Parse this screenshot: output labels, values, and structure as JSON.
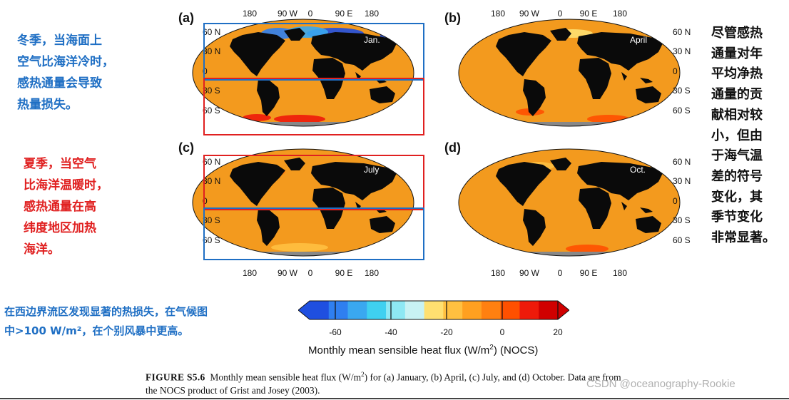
{
  "notes": {
    "winter": [
      "冬季，当海面上",
      "空气比海洋冷时，",
      "感热通量会导致",
      "热量损失。"
    ],
    "summer": [
      "夏季，当空气",
      "比海洋温暖时，",
      "感热通量在高",
      "纬度地区加热",
      "海洋。"
    ],
    "annual": [
      "尽管感热",
      "通量对年",
      "平均净热",
      "通量的贡",
      "献相对较",
      "小，但由",
      "于海气温",
      "差的符号",
      "变化，其",
      "季节变化",
      "非常显著。"
    ],
    "western_boundary": [
      "在西边界流区发现显著的热损失，在气候图",
      "中>100 W/m²，在个别风暴中更高。"
    ]
  },
  "panels": [
    {
      "label": "(a)",
      "month": "Jan."
    },
    {
      "label": "(b)",
      "month": "April"
    },
    {
      "label": "(c)",
      "month": "July"
    },
    {
      "label": "(d)",
      "month": "Oct."
    }
  ],
  "lon_ticks": [
    "180",
    "90 W",
    "0",
    "90 E",
    "180"
  ],
  "lat_ticks": [
    "60 N",
    "30 N",
    "0",
    "30 S",
    "60 S"
  ],
  "colorbar": {
    "ticks": [
      "-60",
      "-40",
      "-20",
      "0",
      "20"
    ],
    "title_prefix": "Monthly mean sensible heat flux (W/m",
    "title_sup": "2",
    "title_suffix": ") (NOCS)",
    "colors": [
      "#1f4fe0",
      "#2f7ff0",
      "#3aa8f0",
      "#3fd0f0",
      "#8ee8f4",
      "#c8f2f4",
      "#ffe070",
      "#ffc040",
      "#ffa020",
      "#ff8010",
      "#ff5000",
      "#ee1a0a",
      "#d00000"
    ]
  },
  "caption": {
    "figure_label": "FIGURE S5.6",
    "text_a": "Monthly mean sensible heat flux (W/m",
    "sup": "2",
    "text_b": ") for (a) January, (b) April, (c) July, and (d) October. Data are from",
    "line2": "the NOCS product of Grist and Josey (2003)."
  },
  "watermark": "CSDN @oceanography-Rookie",
  "colors": {
    "blue_note": "#1f6fc4",
    "red_note": "#e02020",
    "ocean": "#f39a1e",
    "land": "#0a0a0a",
    "ice": "#888888",
    "box_blue": "#1f6fc4",
    "box_red": "#e02020"
  }
}
